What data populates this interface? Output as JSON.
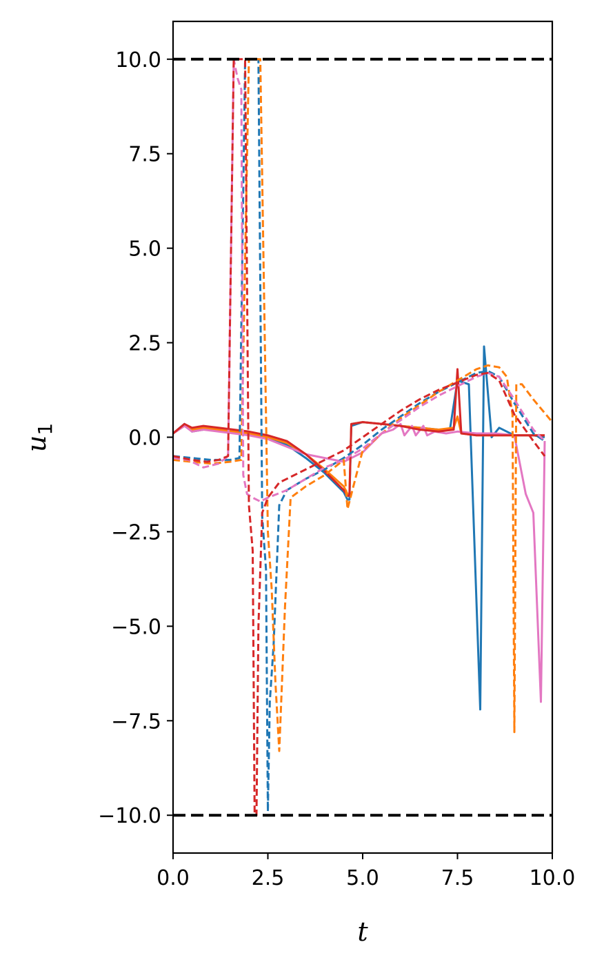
{
  "chart_data": {
    "type": "line",
    "xlabel": "t",
    "ylabel": "u",
    "ylabel_subscript": "1",
    "xlim": [
      0,
      10
    ],
    "ylim": [
      -11,
      11
    ],
    "xticks": [
      0,
      2.5,
      5,
      7.5,
      10
    ],
    "xtick_labels": [
      "0.0",
      "2.5",
      "5.0",
      "7.5",
      "10.0"
    ],
    "yticks": [
      10,
      7.5,
      5,
      2.5,
      0,
      -2.5,
      -5,
      -7.5,
      -10
    ],
    "ytick_labels": [
      "10.0",
      "7.5",
      "5.0",
      "2.5",
      "0.0",
      "−2.5",
      "−5.0",
      "−7.5",
      "−10.0"
    ],
    "grid": false,
    "reference_lines": [
      {
        "y": 10,
        "color": "#000000",
        "style": "dashed"
      },
      {
        "y": -10,
        "color": "#000000",
        "style": "dashed"
      }
    ],
    "series": [
      {
        "color": "#1f77b4",
        "style": "solid",
        "x": [
          0,
          0.3,
          0.5,
          0.8,
          1.2,
          1.6,
          2.0,
          2.5,
          3.0,
          3.5,
          4.0,
          4.5,
          4.6,
          4.65,
          4.7,
          5.0,
          5.5,
          6.0,
          6.5,
          7.0,
          7.3,
          7.5,
          7.8,
          8.1,
          8.2,
          8.4,
          8.6,
          9.0,
          9.5,
          9.8
        ],
        "y": [
          0.1,
          0.35,
          0.15,
          0.2,
          0.2,
          0.15,
          0.1,
          0,
          -0.2,
          -0.55,
          -0.95,
          -1.45,
          -1.65,
          -1.65,
          0.3,
          0.4,
          0.35,
          0.3,
          0.25,
          0.2,
          0.2,
          1.5,
          1.4,
          -7.2,
          2.4,
          0.0,
          0.25,
          0.05,
          0.05,
          0.0
        ]
      },
      {
        "color": "#ff7f0e",
        "style": "solid",
        "x": [
          0,
          0.3,
          0.5,
          0.8,
          1.2,
          1.6,
          2.0,
          2.5,
          3.0,
          3.5,
          4.0,
          4.5,
          4.6,
          4.65,
          4.7,
          5.0,
          5.5,
          6.0,
          6.5,
          7.0,
          7.4,
          7.5,
          7.6,
          8.0,
          8.5,
          9.0,
          9.5,
          9.8
        ],
        "y": [
          0.1,
          0.3,
          0.2,
          0.25,
          0.2,
          0.15,
          0.1,
          0,
          -0.15,
          -0.45,
          -0.85,
          -1.3,
          -1.5,
          -1.5,
          0.35,
          0.4,
          0.35,
          0.3,
          0.25,
          0.2,
          0.25,
          0.55,
          0.1,
          0.05,
          0.05,
          0.05,
          0.05,
          0.05
        ]
      },
      {
        "color": "#e377c2",
        "style": "solid",
        "x": [
          0,
          0.3,
          0.5,
          0.8,
          1.2,
          1.6,
          2.0,
          2.5,
          3.0,
          3.5,
          4.0,
          4.5,
          5.0,
          5.5,
          5.8,
          6.0,
          6.1,
          6.3,
          6.4,
          6.6,
          6.7,
          6.9,
          7.2,
          7.5,
          8.0,
          8.5,
          9.0,
          9.3,
          9.5,
          9.7,
          9.8
        ],
        "y": [
          0.1,
          0.3,
          0.15,
          0.2,
          0.15,
          0.1,
          0.05,
          -0.05,
          -0.25,
          -0.45,
          -0.55,
          -0.65,
          -0.4,
          0.1,
          0.2,
          0.35,
          0.05,
          0.3,
          0.05,
          0.3,
          0.05,
          0.15,
          0.1,
          0.15,
          0.1,
          0.1,
          0.05,
          -1.5,
          -2.0,
          -7.0,
          -0.1
        ]
      },
      {
        "color": "#d62728",
        "style": "solid",
        "x": [
          0,
          0.3,
          0.5,
          0.8,
          1.2,
          1.6,
          2.0,
          2.5,
          3.0,
          3.5,
          4.0,
          4.5,
          4.6,
          4.65,
          4.7,
          5.0,
          5.5,
          6.0,
          6.5,
          7.0,
          7.4,
          7.5,
          7.6,
          8.0,
          8.5,
          9.0,
          9.5,
          9.8
        ],
        "y": [
          0.1,
          0.35,
          0.25,
          0.3,
          0.25,
          0.2,
          0.15,
          0.05,
          -0.1,
          -0.45,
          -0.9,
          -1.4,
          -1.55,
          -1.55,
          0.35,
          0.4,
          0.35,
          0.3,
          0.2,
          0.15,
          0.2,
          1.8,
          0.1,
          0.05,
          0.05,
          0.05,
          0.05,
          0.05
        ]
      },
      {
        "color": "#1f77b4",
        "style": "dashed",
        "x": [
          0,
          0.5,
          1.0,
          1.5,
          1.75,
          1.9,
          2.1,
          2.25,
          2.35,
          2.45,
          2.5,
          2.55,
          2.65,
          2.8,
          3.0,
          3.5,
          4.0,
          4.5,
          5.0,
          5.5,
          6.0,
          6.5,
          7.0,
          7.5,
          8.0,
          8.3,
          8.6,
          9.0,
          9.5,
          9.8
        ],
        "y": [
          -0.5,
          -0.55,
          -0.6,
          -0.6,
          -0.55,
          10,
          10,
          10,
          -2.1,
          -3.5,
          -9.9,
          -7.0,
          -5.5,
          -1.8,
          -1.4,
          -1.1,
          -0.85,
          -0.55,
          -0.2,
          0.2,
          0.55,
          0.9,
          1.2,
          1.45,
          1.7,
          1.75,
          1.6,
          0.9,
          0.1,
          -0.1
        ]
      },
      {
        "color": "#ff7f0e",
        "style": "dashed",
        "x": [
          0,
          0.5,
          1.0,
          1.5,
          1.8,
          2.0,
          2.3,
          2.5,
          2.6,
          2.7,
          2.8,
          2.95,
          3.1,
          3.5,
          4.0,
          4.5,
          4.6,
          5.0,
          5.5,
          6.0,
          6.5,
          7.0,
          7.5,
          8.0,
          8.3,
          8.6,
          8.8,
          8.95,
          9.0,
          9.05,
          9.2,
          9.5,
          10.0
        ],
        "y": [
          -0.6,
          -0.65,
          -0.7,
          -0.65,
          -0.6,
          10,
          10,
          -2.5,
          -4.0,
          -6.5,
          -8.3,
          -4.5,
          -1.6,
          -1.3,
          -1.0,
          -0.6,
          -1.9,
          -0.35,
          0.1,
          0.5,
          0.85,
          1.2,
          1.5,
          1.8,
          1.9,
          1.85,
          1.6,
          0.6,
          -7.8,
          1.4,
          1.4,
          1.0,
          0.4
        ]
      },
      {
        "color": "#e377c2",
        "style": "dashed",
        "x": [
          0,
          0.4,
          0.8,
          1.2,
          1.45,
          1.6,
          1.7,
          1.8,
          1.85,
          1.95,
          2.1,
          2.3,
          2.5,
          3.0,
          3.5,
          4.0,
          4.5,
          5.0,
          5.5,
          6.0,
          6.5,
          7.0,
          7.5,
          8.0,
          8.3,
          8.6,
          9.0,
          9.5,
          9.8
        ],
        "y": [
          -0.55,
          -0.6,
          -0.8,
          -0.7,
          -0.5,
          10,
          9.5,
          9.2,
          -1.0,
          -1.5,
          -1.6,
          -1.7,
          -1.6,
          -1.4,
          -1.1,
          -0.8,
          -0.6,
          -0.3,
          0.1,
          0.45,
          0.8,
          1.1,
          1.35,
          1.6,
          1.7,
          1.6,
          1.0,
          0.2,
          -0.1
        ]
      },
      {
        "color": "#d62728",
        "style": "dashed",
        "x": [
          0,
          0.5,
          0.9,
          1.2,
          1.45,
          1.6,
          1.75,
          1.9,
          2.0,
          2.1,
          2.15,
          2.2,
          2.25,
          2.35,
          2.5,
          2.8,
          3.0,
          3.5,
          4.0,
          4.5,
          5.0,
          5.5,
          6.0,
          6.5,
          7.0,
          7.5,
          8.0,
          8.3,
          8.6,
          9.0,
          9.5,
          9.8
        ],
        "y": [
          -0.5,
          -0.6,
          -0.65,
          -0.6,
          -0.5,
          10,
          10,
          10,
          -1.8,
          -3.0,
          -10.0,
          -10.0,
          -5.0,
          -2.0,
          -1.6,
          -1.2,
          -1.1,
          -0.85,
          -0.6,
          -0.35,
          0.0,
          0.35,
          0.7,
          1.0,
          1.25,
          1.45,
          1.65,
          1.7,
          1.5,
          0.6,
          -0.1,
          -0.5
        ]
      }
    ]
  }
}
